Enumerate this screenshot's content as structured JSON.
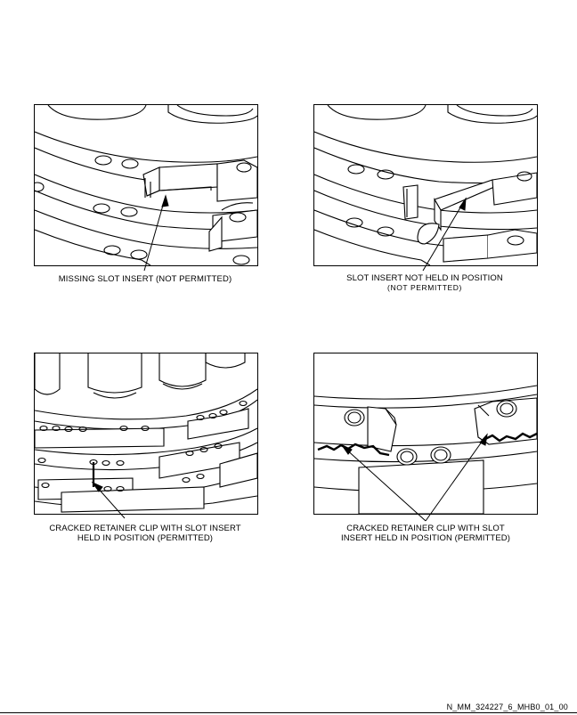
{
  "panels": [
    {
      "caption_line1": "MISSING SLOT INSERT (NOT PERMITTED)",
      "caption_line2": ""
    },
    {
      "caption_line1": "SLOT INSERT NOT HELD IN POSITION",
      "caption_line2": "(NOT PERMITTED)"
    },
    {
      "caption_line1": "CRACKED RETAINER CLIP WITH SLOT INSERT",
      "caption_line2": "HELD IN POSITION (PERMITTED)"
    },
    {
      "caption_line1": "CRACKED RETAINER CLIP WITH SLOT",
      "caption_line2": "INSERT HELD IN POSITION (PERMITTED)"
    }
  ],
  "figure_id": "N_MM_324227_6_MHB0_01_00"
}
